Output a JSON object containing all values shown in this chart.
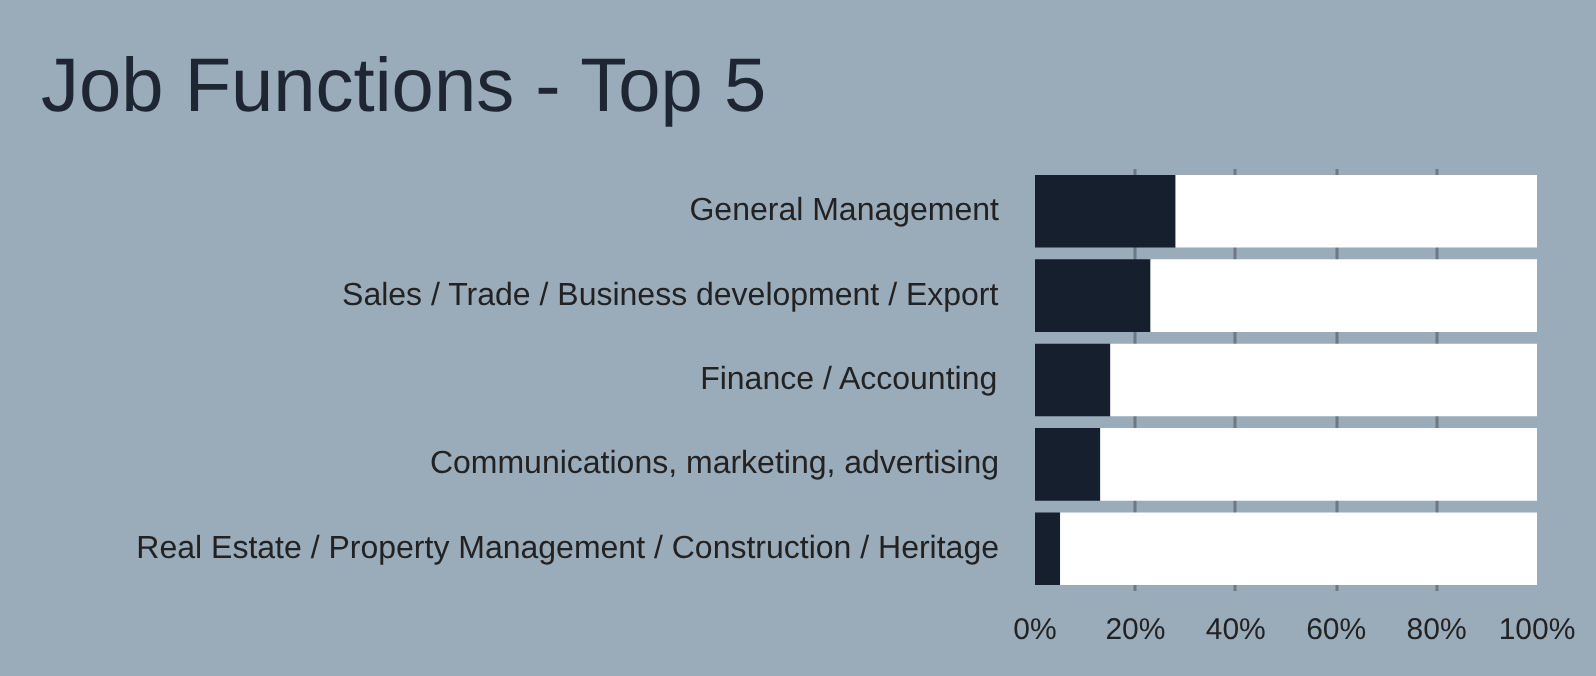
{
  "chart_data": {
    "type": "bar",
    "orientation": "horizontal",
    "stacked": true,
    "title": "Job Functions - Top 5",
    "categories": [
      "General Management",
      "Sales / Trade / Business development / Export",
      "Finance / Accounting",
      "Communications, marketing, advertising",
      "Real Estate / Property Management / Construction / Heritage"
    ],
    "series": [
      {
        "color": "#161f2e",
        "values": [
          28,
          23,
          15,
          13,
          5
        ]
      },
      {
        "color": "#ffffff",
        "values": [
          72,
          77,
          85,
          87,
          95
        ]
      }
    ],
    "xlim": [
      0,
      100
    ],
    "xticks": [
      {
        "value": 0,
        "label": "0%"
      },
      {
        "value": 20,
        "label": "20%"
      },
      {
        "value": 40,
        "label": "40%"
      },
      {
        "value": 60,
        "label": "60%"
      },
      {
        "value": 80,
        "label": "80%"
      },
      {
        "value": 100,
        "label": "100%"
      }
    ],
    "grid": "x"
  }
}
